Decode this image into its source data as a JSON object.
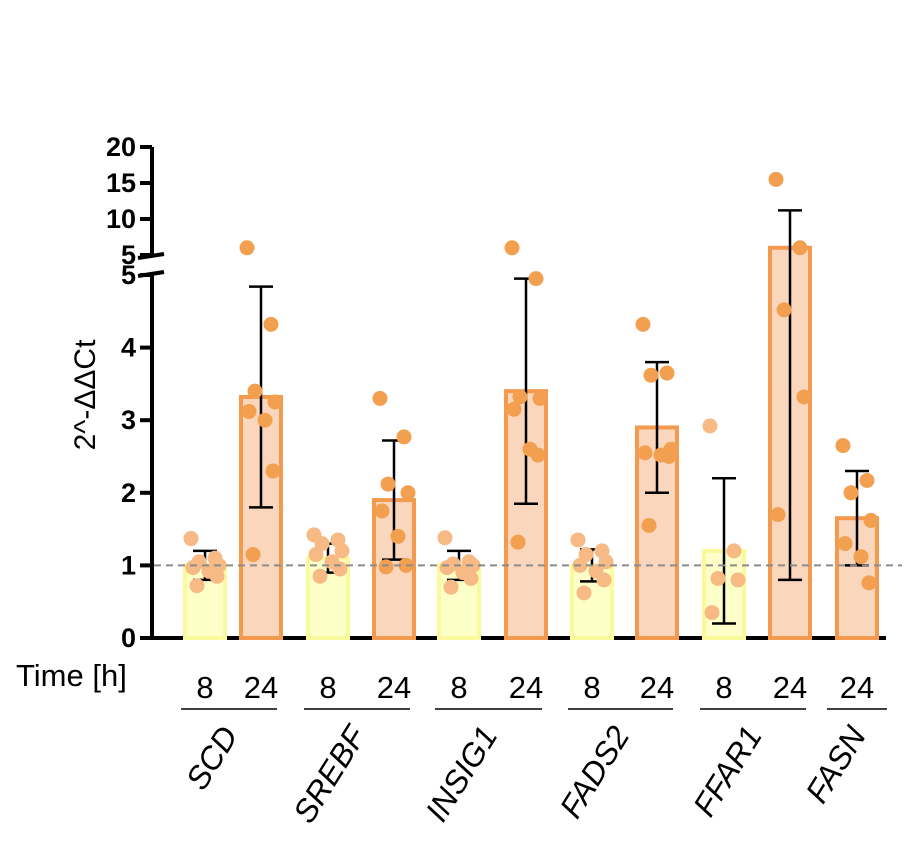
{
  "chart_data": {
    "type": "bar",
    "title": "",
    "ylabel": "2^-ΔΔCt",
    "row_label": "Time [h]",
    "y_axis_break": {
      "lower_range": [
        0,
        5
      ],
      "lower_ticks": [
        0,
        1,
        2,
        3,
        4,
        5
      ],
      "upper_range": [
        5,
        20
      ],
      "upper_ticks": [
        5,
        10,
        15,
        20
      ]
    },
    "reference_line": {
      "y": 1,
      "style": "dashed",
      "color": "#8c8c8c"
    },
    "colors": {
      "8h_fill": "#FDFFC9",
      "8h_edge": "#FAFA9C",
      "8h_dot": "#F7BA84",
      "24h_fill": "#FAD6BD",
      "24h_edge": "#F39A4E",
      "24h_dot": "#F2A050",
      "error_bar": "#000000"
    },
    "groups": [
      {
        "gene": "SCD",
        "bars": [
          {
            "time": "8",
            "mean": 1.0,
            "sd": 0.2,
            "points": [
              1.37,
              1.1,
              1.05,
              1.0,
              0.97,
              0.92,
              0.85,
              0.72
            ]
          },
          {
            "time": "24",
            "mean": 3.32,
            "sd": 1.52,
            "points": [
              6.0,
              4.32,
              3.4,
              3.25,
              3.12,
              3.0,
              2.3,
              1.15
            ]
          }
        ]
      },
      {
        "gene": "SREBF",
        "bars": [
          {
            "time": "8",
            "mean": 1.1,
            "sd": 0.2,
            "points": [
              1.42,
              1.35,
              1.3,
              1.2,
              1.15,
              1.05,
              0.95,
              0.85
            ]
          },
          {
            "time": "24",
            "mean": 1.9,
            "sd": 0.82,
            "points": [
              3.3,
              2.77,
              2.12,
              2.0,
              1.75,
              1.4,
              1.0,
              0.98
            ]
          }
        ]
      },
      {
        "gene": "INSIG1",
        "bars": [
          {
            "time": "8",
            "mean": 1.0,
            "sd": 0.2,
            "points": [
              1.38,
              1.05,
              1.02,
              1.0,
              0.97,
              0.9,
              0.82,
              0.7
            ]
          },
          {
            "time": "24",
            "mean": 3.4,
            "sd": 1.55,
            "points": [
              6.0,
              4.95,
              3.32,
              3.3,
              3.15,
              2.6,
              2.52,
              1.32
            ]
          }
        ]
      },
      {
        "gene": "FADS2",
        "bars": [
          {
            "time": "8",
            "mean": 1.0,
            "sd": 0.22,
            "points": [
              1.35,
              1.2,
              1.15,
              1.05,
              1.0,
              0.92,
              0.8,
              0.62
            ]
          },
          {
            "time": "24",
            "mean": 2.9,
            "sd": 0.9,
            "points": [
              4.32,
              3.65,
              3.62,
              2.6,
              2.55,
              2.52,
              2.5,
              1.55
            ]
          }
        ]
      },
      {
        "gene": "FFAR1",
        "bars": [
          {
            "time": "8",
            "mean": 1.2,
            "sd": 1.0,
            "points": [
              2.92,
              1.2,
              0.82,
              0.8,
              0.35
            ]
          },
          {
            "time": "24",
            "mean": 6.0,
            "sd": 5.2,
            "points": [
              15.5,
              6.0,
              4.52,
              3.32,
              1.7
            ]
          }
        ]
      },
      {
        "gene": "FASN",
        "bars": [
          {
            "time": "24",
            "mean": 1.65,
            "sd": 0.65,
            "points": [
              2.65,
              2.17,
              2.0,
              1.62,
              1.3,
              1.12,
              0.76
            ]
          }
        ]
      }
    ]
  }
}
